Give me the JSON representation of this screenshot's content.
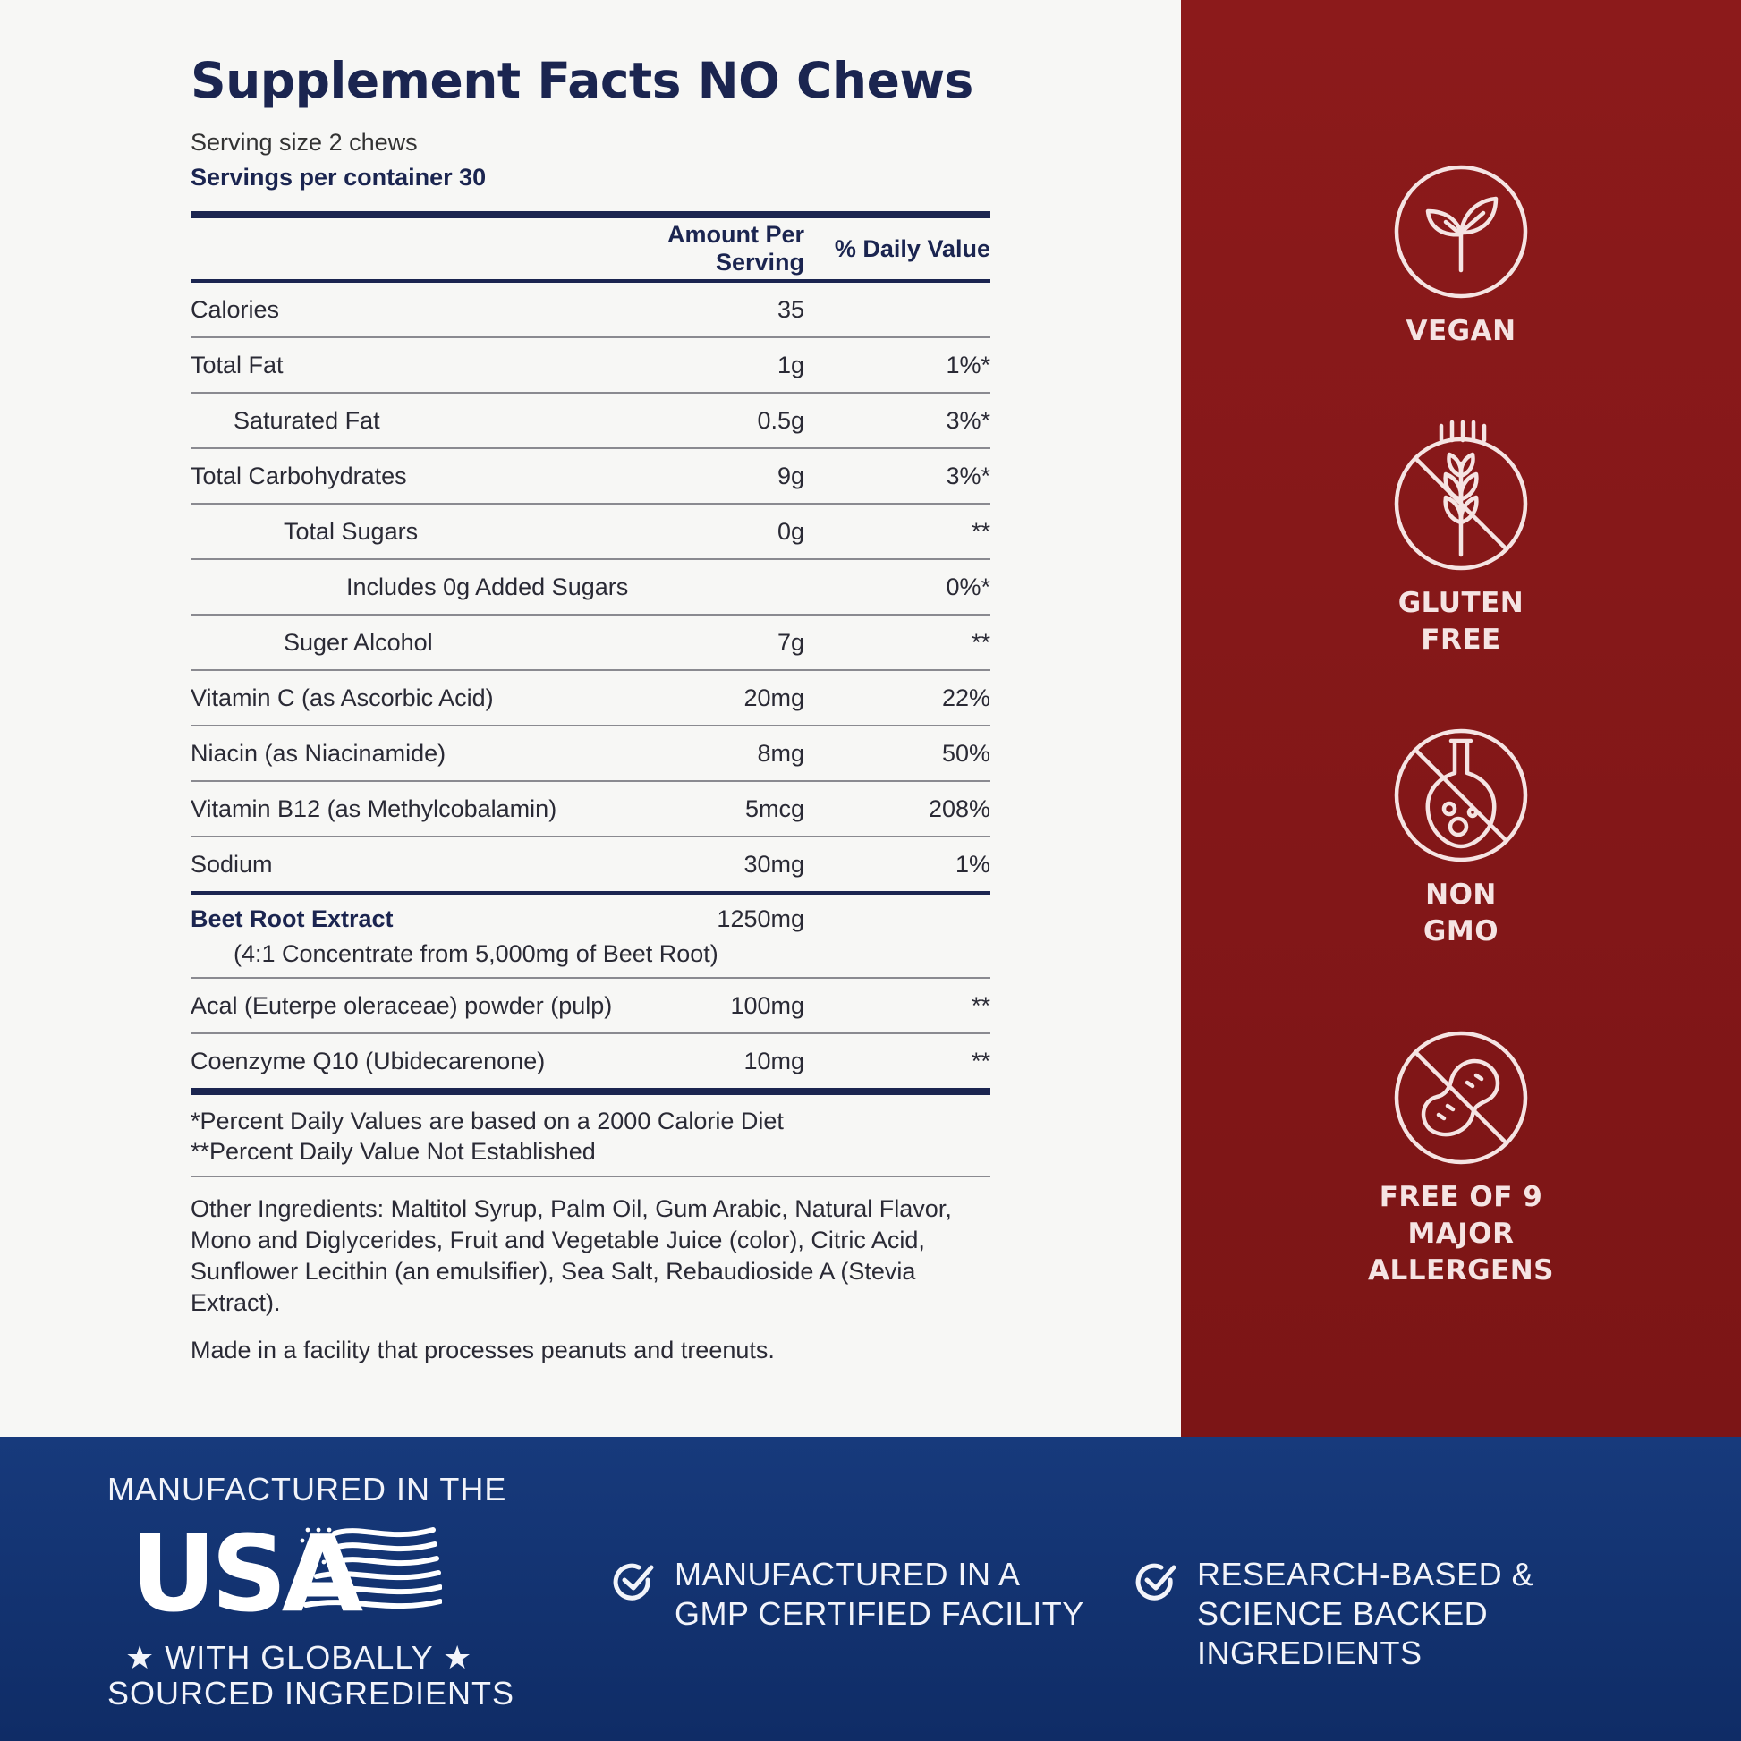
{
  "facts": {
    "title": "Supplement Facts NO Chews",
    "serving_size": "Serving size 2 chews",
    "servings_per_container": "Servings per container 30",
    "col_amount": "Amount Per Serving",
    "col_dv": "% Daily Value",
    "rows": [
      {
        "name": "Calories",
        "amount": "35",
        "dv": ""
      },
      {
        "name": "Total Fat",
        "amount": "1g",
        "dv": "1%*"
      },
      {
        "name": "Saturated Fat",
        "amount": "0.5g",
        "dv": "3%*"
      },
      {
        "name": "Total Carbohydrates",
        "amount": "9g",
        "dv": "3%*"
      },
      {
        "name": "Total Sugars",
        "amount": "0g",
        "dv": "**"
      },
      {
        "name": "Includes 0g Added Sugars",
        "amount": "",
        "dv": "0%*"
      },
      {
        "name": "Suger Alcohol",
        "amount": "7g",
        "dv": "**"
      },
      {
        "name": "Vitamin C (as Ascorbic Acid)",
        "amount": "20mg",
        "dv": "22%"
      },
      {
        "name": "Niacin (as Niacinamide)",
        "amount": "8mg",
        "dv": "50%"
      },
      {
        "name": "Vitamin B12 (as Methylcobalamin)",
        "amount": "5mcg",
        "dv": "208%"
      },
      {
        "name": "Sodium",
        "amount": "30mg",
        "dv": "1%"
      }
    ],
    "beet": {
      "name": "Beet Root Extract",
      "amount": "1250mg",
      "sub": "(4:1 Concentrate from 5,000mg of Beet Root)"
    },
    "rows2": [
      {
        "name": "Acal (Euterpe oleraceae) powder (pulp)",
        "amount": "100mg",
        "dv": "**"
      },
      {
        "name": "Coenzyme Q10 (Ubidecarenone)",
        "amount": "10mg",
        "dv": "**"
      }
    ],
    "note1": "*Percent Daily Values are based on a 2000 Calorie Diet",
    "note2": "**Percent Daily Value Not Established",
    "other_ingredients": "Other Ingredients: Maltitol Syrup, Palm Oil, Gum Arabic, Natural Flavor, Mono and Diglycerides, Fruit and Vegetable Juice (color), Citric Acid, Sunflower Lecithin (an emulsifier), Sea Salt, Rebaudioside A (Stevia Extract).",
    "facility_note": "Made in a facility that processes peanuts and treenuts."
  },
  "badges": [
    {
      "label": "VEGAN",
      "icon": "leaf-sprout-icon"
    },
    {
      "label": "GLUTEN FREE",
      "icon": "wheat-crossed-icon"
    },
    {
      "label": "NON GMO",
      "icon": "flask-crossed-icon"
    },
    {
      "label": "FREE OF 9 MAJOR ALLERGENS",
      "icon": "peanut-crossed-icon"
    }
  ],
  "footer": {
    "usa_line1": "MANUFACTURED IN THE",
    "usa_word": "USA",
    "usa_line2": "WITH GLOBALLY",
    "usa_line3": "SOURCED INGREDIENTS",
    "claim1": "MANUFACTURED IN A GMP CERTIFIED FACILITY",
    "claim2": "RESEARCH-BASED & SCIENCE BACKED INGREDIENTS"
  },
  "colors": {
    "navy": "#1b2550",
    "red_panel": "#8c1a1b",
    "footer_blue": "#173a7c"
  }
}
